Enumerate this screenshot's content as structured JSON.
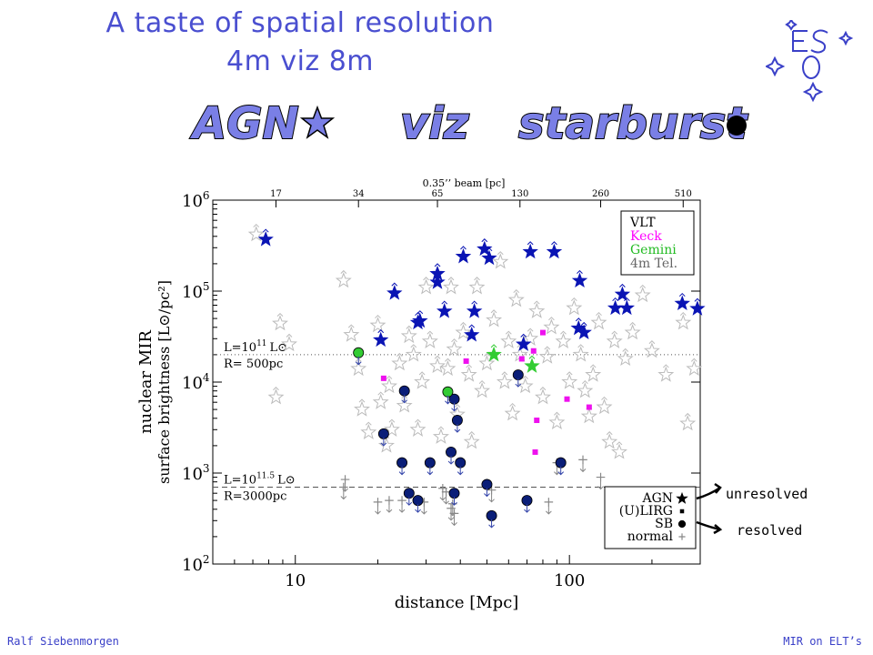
{
  "slide": {
    "title_line1": "A taste of spatial resolution",
    "title_line2": "4m   viz      8m",
    "word_agn": "AGN",
    "word_viz": "viz",
    "word_starburst": "starburst",
    "footer_left": "Ralf Siebenmorgen",
    "footer_right": "MIR on ELT’s",
    "label_unresolved": "unresolved",
    "label_resolved": "resolved",
    "accent_color": "#4a4fd0",
    "word_fill_color": "#7a7fe6",
    "logo_text": "ESO"
  },
  "chart_data": {
    "type": "scatter",
    "xlabel": "distance [Mpc]",
    "ylabel_line1": "nuclear MIR",
    "ylabel_line2": "surface brightness [L⊙/pc²]",
    "x_scale": "log",
    "y_scale": "log",
    "xlim": [
      5,
      300
    ],
    "ylim": [
      100,
      1000000
    ],
    "x_ticks": [
      {
        "value": 10,
        "label": "10"
      },
      {
        "value": 100,
        "label": "100"
      }
    ],
    "y_ticks": [
      {
        "value": 100,
        "label": "10",
        "exp": "2"
      },
      {
        "value": 1000,
        "label": "10",
        "exp": "3"
      },
      {
        "value": 10000,
        "label": "10",
        "exp": "4"
      },
      {
        "value": 100000,
        "label": "10",
        "exp": "5"
      },
      {
        "value": 1000000,
        "label": "10",
        "exp": "6"
      }
    ],
    "top_axis": {
      "label": "0.35’’ beam [pc]",
      "ticks": [
        {
          "x": 8.5,
          "label": "17"
        },
        {
          "x": 17,
          "label": "34"
        },
        {
          "x": 33,
          "label": "65"
        },
        {
          "x": 66,
          "label": "130"
        },
        {
          "x": 130,
          "label": "260"
        },
        {
          "x": 260,
          "label": "510"
        }
      ]
    },
    "reference_lines": [
      {
        "y": 20000,
        "style": "dotted",
        "label_L": "L=10",
        "label_exp": "11",
        "label_sun": "L⊙",
        "label_R": "R= 500pc"
      },
      {
        "y": 700,
        "style": "dashed",
        "label_L": "L=10",
        "label_exp": "11.5",
        "label_sun": "L⊙",
        "label_R": "R=3000pc"
      }
    ],
    "telescope_legend": [
      {
        "name": "VLT",
        "color": "#000000"
      },
      {
        "name": "Keck",
        "color": "#ff00ff"
      },
      {
        "name": "Gemini",
        "color": "#22bb22"
      },
      {
        "name": "4m Tel.",
        "color": "#666666"
      }
    ],
    "class_legend": [
      {
        "name": "AGN",
        "symbol": "star"
      },
      {
        "name": "(U)LIRG",
        "symbol": "square"
      },
      {
        "name": "SB",
        "symbol": "circle"
      },
      {
        "name": "normal",
        "symbol": "plus"
      }
    ],
    "series": [
      {
        "name": "AGN",
        "telescope": "VLT",
        "symbol": "star",
        "color": "#0a14b4",
        "points": [
          [
            7.8,
            370000
          ],
          [
            23,
            95000
          ],
          [
            28,
            45000
          ],
          [
            28.5,
            47000
          ],
          [
            33,
            155000
          ],
          [
            33,
            125000
          ],
          [
            35,
            60000
          ],
          [
            41,
            240000
          ],
          [
            44,
            33000
          ],
          [
            45,
            60000
          ],
          [
            49,
            290000
          ],
          [
            51,
            230000
          ],
          [
            68,
            26000
          ],
          [
            72,
            270000
          ],
          [
            88,
            270000
          ],
          [
            109,
            130000
          ],
          [
            108,
            39000
          ],
          [
            113,
            35000
          ],
          [
            147,
            65000
          ],
          [
            156,
            92000
          ],
          [
            162,
            65000
          ],
          [
            258,
            73000
          ],
          [
            293,
            64000
          ],
          [
            20.5,
            29000
          ]
        ]
      },
      {
        "name": "SB",
        "telescope": "VLT",
        "symbol": "circle",
        "color": "#0a1e78",
        "points": [
          [
            21,
            2700
          ],
          [
            25,
            8000
          ],
          [
            24.5,
            1300
          ],
          [
            31,
            1300
          ],
          [
            39,
            3800
          ],
          [
            38,
            6500
          ],
          [
            37,
            1700
          ],
          [
            40,
            1300
          ],
          [
            26,
            600
          ],
          [
            28,
            500
          ],
          [
            38,
            600
          ],
          [
            52,
            340
          ],
          [
            50,
            750
          ],
          [
            70,
            500
          ],
          [
            93,
            1300
          ],
          [
            65,
            12000
          ]
        ]
      },
      {
        "name": "SB",
        "telescope": "Gemini",
        "symbol": "circle",
        "color": "#33cc33",
        "points": [
          [
            17,
            21000
          ],
          [
            36,
            7800
          ]
        ]
      },
      {
        "name": "AGN",
        "telescope": "Gemini",
        "symbol": "star",
        "color": "#33cc33",
        "points": [
          [
            53,
            20000
          ],
          [
            73,
            15000
          ]
        ]
      },
      {
        "name": "(U)LIRG",
        "telescope": "Keck",
        "symbol": "square",
        "color": "#ee11ee",
        "points": [
          [
            21,
            11000
          ],
          [
            42,
            17000
          ],
          [
            67,
            18000
          ],
          [
            74,
            22000
          ],
          [
            80,
            35000
          ],
          [
            76,
            3800
          ],
          [
            75,
            1700
          ],
          [
            98,
            6500
          ],
          [
            118,
            5300
          ]
        ]
      },
      {
        "name": "AGN",
        "telescope": "4m Tel.",
        "symbol": "star",
        "color": "#bbbbbb",
        "points": [
          [
            7.2,
            420000
          ],
          [
            8.8,
            44000
          ],
          [
            9.5,
            26000
          ],
          [
            8.5,
            6800
          ],
          [
            15,
            130000
          ],
          [
            16,
            33000
          ],
          [
            17,
            14000
          ],
          [
            17.5,
            5000
          ],
          [
            18.5,
            2800
          ],
          [
            20,
            42000
          ],
          [
            20.5,
            6000
          ],
          [
            21.5,
            2000
          ],
          [
            22,
            9000
          ],
          [
            22.5,
            3000
          ],
          [
            24,
            16000
          ],
          [
            25,
            5500
          ],
          [
            26,
            32000
          ],
          [
            27,
            20000
          ],
          [
            28,
            3000
          ],
          [
            29,
            10000
          ],
          [
            30,
            110000
          ],
          [
            31,
            28000
          ],
          [
            33,
            15000
          ],
          [
            34,
            2500
          ],
          [
            36,
            14000
          ],
          [
            37,
            110000
          ],
          [
            38,
            23000
          ],
          [
            39,
            4400
          ],
          [
            41,
            35000
          ],
          [
            43,
            12000
          ],
          [
            44,
            2200
          ],
          [
            46,
            110000
          ],
          [
            48,
            8000
          ],
          [
            50,
            16000
          ],
          [
            53,
            48000
          ],
          [
            56,
            210000
          ],
          [
            58,
            10000
          ],
          [
            60,
            28000
          ],
          [
            62,
            4500
          ],
          [
            64,
            80000
          ],
          [
            66,
            20000
          ],
          [
            69,
            9000
          ],
          [
            72,
            30000
          ],
          [
            76,
            60000
          ],
          [
            80,
            6800
          ],
          [
            83,
            19000
          ],
          [
            86,
            40000
          ],
          [
            90,
            3600
          ],
          [
            95,
            28000
          ],
          [
            100,
            10000
          ],
          [
            104,
            65000
          ],
          [
            110,
            20000
          ],
          [
            114,
            8000
          ],
          [
            118,
            4200
          ],
          [
            122,
            12000
          ],
          [
            128,
            45000
          ],
          [
            134,
            5300
          ],
          [
            140,
            2200
          ],
          [
            146,
            28000
          ],
          [
            152,
            1700
          ],
          [
            160,
            18000
          ],
          [
            170,
            35000
          ],
          [
            185,
            90000
          ],
          [
            200,
            22000
          ],
          [
            225,
            12000
          ],
          [
            260,
            45000
          ],
          [
            270,
            3500
          ],
          [
            285,
            14000
          ]
        ]
      },
      {
        "name": "normal",
        "telescope": "4m Tel.",
        "symbol": "plus",
        "color": "#888888",
        "points": [
          [
            15,
            700
          ],
          [
            15.2,
            850
          ],
          [
            20,
            480
          ],
          [
            22,
            500
          ],
          [
            24.5,
            500
          ],
          [
            29.5,
            480
          ],
          [
            34.5,
            680
          ],
          [
            35.5,
            620
          ],
          [
            37,
            410
          ],
          [
            37.5,
            460
          ],
          [
            38,
            360
          ],
          [
            52,
            650
          ],
          [
            84,
            480
          ],
          [
            90,
            1300
          ],
          [
            112,
            1400
          ],
          [
            130,
            900
          ]
        ]
      }
    ]
  }
}
